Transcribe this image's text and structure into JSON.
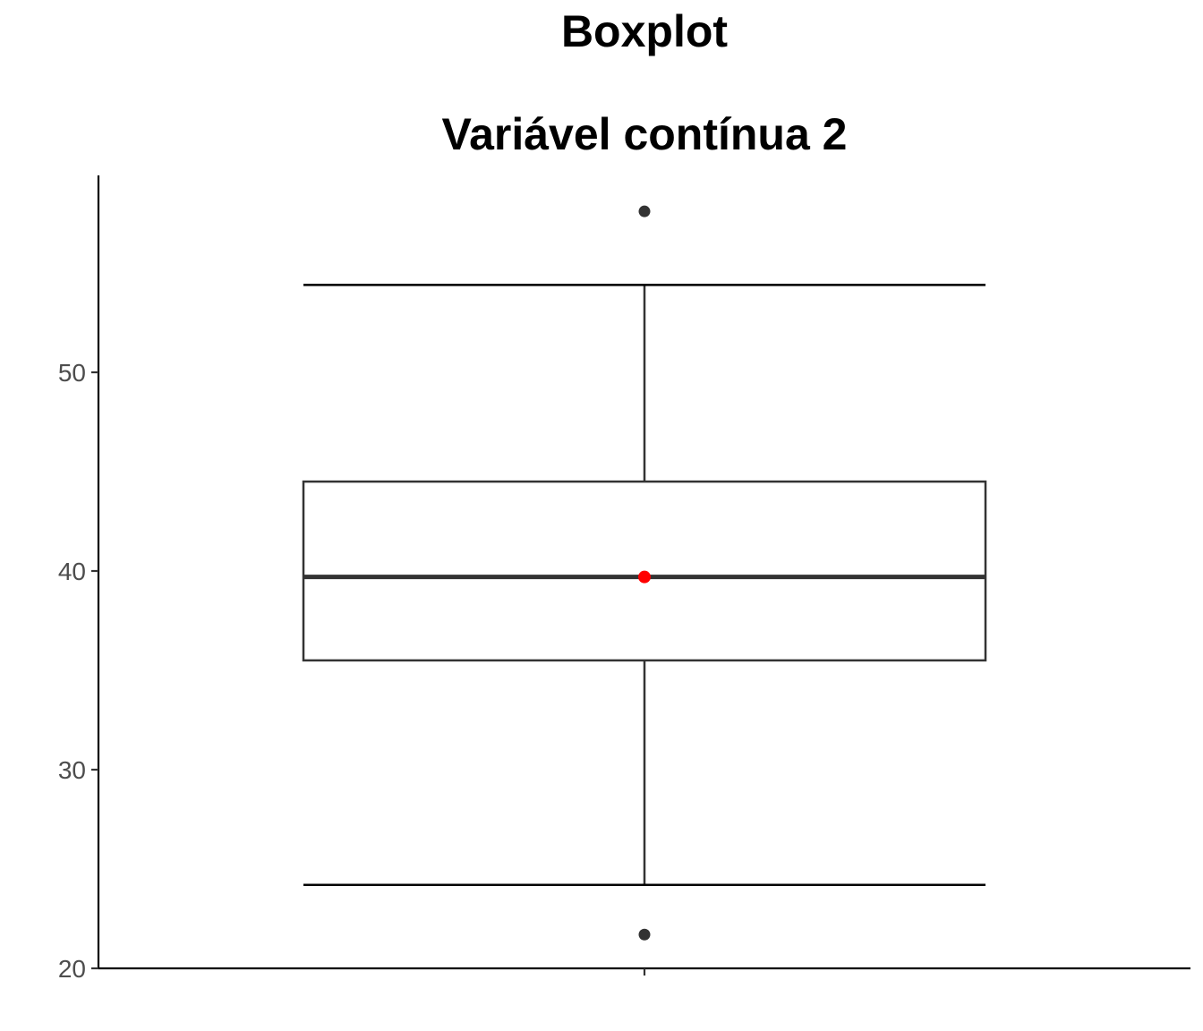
{
  "chart_data": {
    "type": "boxplot",
    "title": "Boxplot",
    "subtitle": "Variável contínua 2",
    "xlabel": "",
    "ylabel": "",
    "ylim": [
      20,
      60
    ],
    "yticks": [
      20,
      30,
      40,
      50
    ],
    "grid": false,
    "box": {
      "whisker_low": 24.2,
      "q1": 35.5,
      "median": 39.7,
      "q3": 44.5,
      "whisker_high": 54.4,
      "mean": 39.7,
      "outliers": [
        21.7,
        58.1
      ]
    },
    "colors": {
      "box_line": "#333333",
      "mean_point": "#ff0000",
      "outlier": "#333333",
      "axis": "#000000"
    }
  }
}
